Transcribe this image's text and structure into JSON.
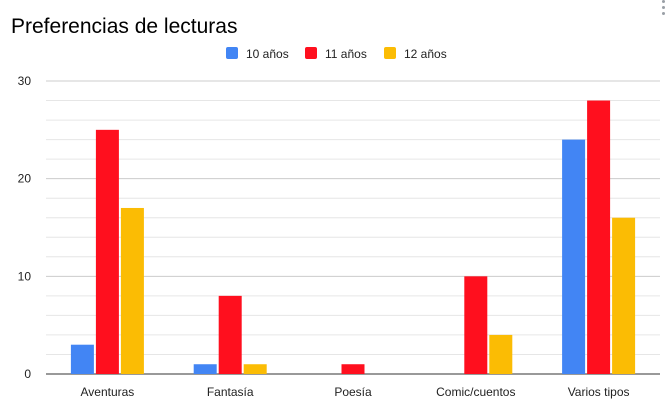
{
  "chart_data": {
    "type": "bar",
    "title": "Preferencias de lecturas",
    "categories": [
      "Aventuras",
      "Fantasía",
      "Poesía",
      "Comic/cuentos",
      "Varios tipos"
    ],
    "series": [
      {
        "name": "10 años",
        "color": "#4285f4",
        "values": [
          3,
          1,
          0,
          0,
          24
        ]
      },
      {
        "name": "11 años",
        "color": "#ff0f1e",
        "values": [
          25,
          8,
          1,
          10,
          28
        ]
      },
      {
        "name": "12 años",
        "color": "#fbbc04",
        "values": [
          17,
          1,
          0,
          4,
          16
        ]
      }
    ],
    "ylim": [
      0,
      30
    ],
    "yticks": [
      0,
      10,
      20,
      30
    ],
    "minor_grid_step": 2,
    "grid": true,
    "legend_position": "top-center",
    "xlabel": "",
    "ylabel": ""
  },
  "chart_menu_icon": "more-vertical-icon"
}
